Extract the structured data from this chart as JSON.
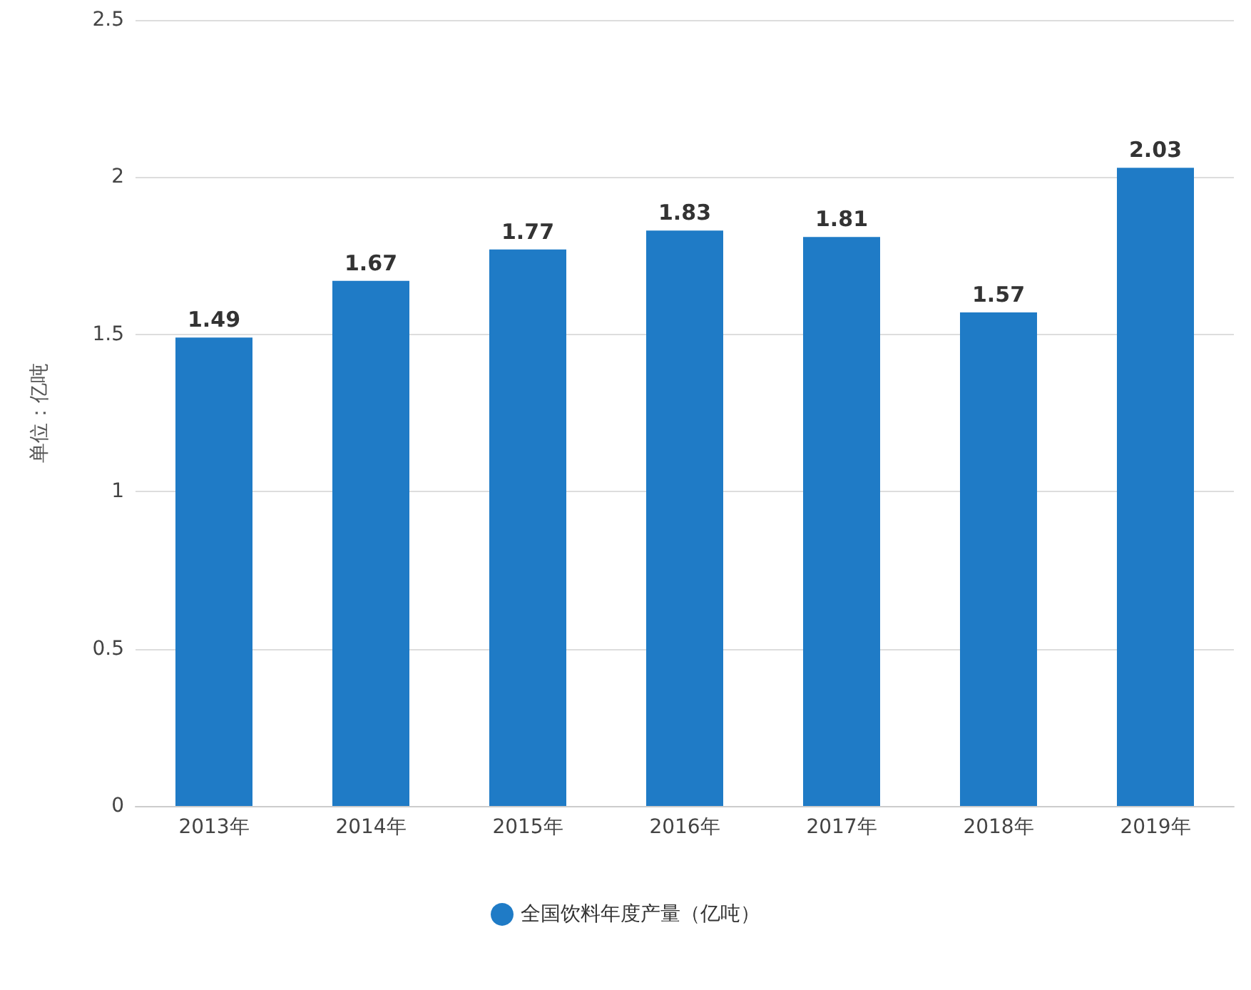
{
  "chart_data": {
    "type": "bar",
    "ylabel": "单位：亿吨",
    "categories": [
      "2013年",
      "2014年",
      "2015年",
      "2016年",
      "2017年",
      "2018年",
      "2019年"
    ],
    "series": [
      {
        "name": "全国饮料年度产量（亿吨）",
        "color": "#1f7bc6",
        "values": [
          1.49,
          1.67,
          1.77,
          1.83,
          1.81,
          1.57,
          2.03
        ]
      }
    ],
    "ylim": [
      0,
      2.5
    ],
    "yticks": [
      0,
      0.5,
      1,
      1.5,
      2,
      2.5
    ],
    "grid": "y",
    "legend": "bottom",
    "data_labels": true
  }
}
